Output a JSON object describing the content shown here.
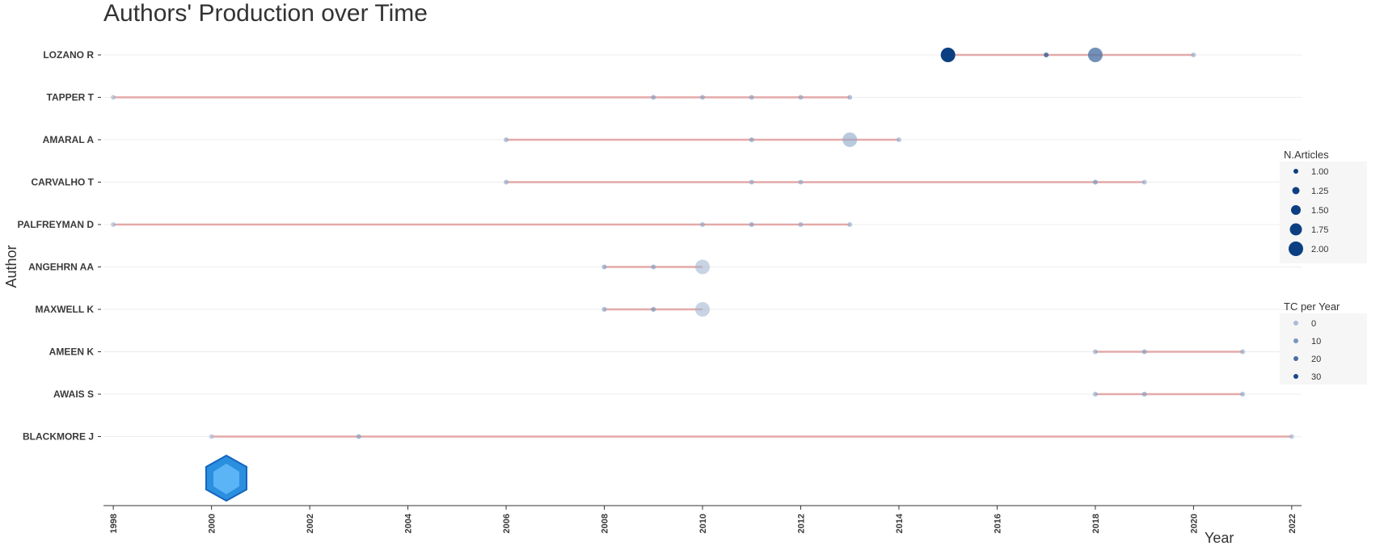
{
  "chart_data": {
    "type": "scatter",
    "title": "Authors' Production over Time",
    "xlabel": "Year",
    "ylabel": "Author",
    "xlim": [
      1997.8,
      2022.2
    ],
    "x_ticks": [
      "1998",
      "2000",
      "2002",
      "2004",
      "2006",
      "2008",
      "2010",
      "2012",
      "2014",
      "2016",
      "2018",
      "2020",
      "2022"
    ],
    "grid": true,
    "legend_position": "right",
    "line_color": "#e4a9a9",
    "point_color_low": "#a9bdd6",
    "point_color_high": "#0c3f82",
    "authors": [
      {
        "name": "LOZANO R",
        "range": [
          2015,
          2020
        ],
        "points": [
          {
            "year": 2015,
            "articles": 2,
            "tc": 32
          },
          {
            "year": 2017,
            "articles": 1,
            "tc": 22
          },
          {
            "year": 2018,
            "articles": 2,
            "tc": 18
          },
          {
            "year": 2020,
            "articles": 1,
            "tc": 5
          }
        ]
      },
      {
        "name": "TAPPER T",
        "range": [
          1998,
          2013
        ],
        "points": [
          {
            "year": 1998,
            "articles": 1,
            "tc": 3
          },
          {
            "year": 2009,
            "articles": 1,
            "tc": 8
          },
          {
            "year": 2010,
            "articles": 1,
            "tc": 7
          },
          {
            "year": 2011,
            "articles": 1,
            "tc": 7
          },
          {
            "year": 2012,
            "articles": 1,
            "tc": 7
          },
          {
            "year": 2013,
            "articles": 1,
            "tc": 6
          }
        ]
      },
      {
        "name": "AMARAL A",
        "range": [
          2006,
          2014
        ],
        "points": [
          {
            "year": 2006,
            "articles": 1,
            "tc": 6
          },
          {
            "year": 2011,
            "articles": 1,
            "tc": 8
          },
          {
            "year": 2013,
            "articles": 2,
            "tc": 5
          },
          {
            "year": 2014,
            "articles": 1,
            "tc": 5
          }
        ]
      },
      {
        "name": "CARVALHO T",
        "range": [
          2006,
          2019
        ],
        "points": [
          {
            "year": 2006,
            "articles": 1,
            "tc": 6
          },
          {
            "year": 2011,
            "articles": 1,
            "tc": 6
          },
          {
            "year": 2012,
            "articles": 1,
            "tc": 6
          },
          {
            "year": 2018,
            "articles": 1,
            "tc": 10
          },
          {
            "year": 2019,
            "articles": 1,
            "tc": 5
          }
        ]
      },
      {
        "name": "PALFREYMAN D",
        "range": [
          1998,
          2013
        ],
        "points": [
          {
            "year": 1998,
            "articles": 1,
            "tc": 3
          },
          {
            "year": 2010,
            "articles": 1,
            "tc": 6
          },
          {
            "year": 2011,
            "articles": 1,
            "tc": 8
          },
          {
            "year": 2012,
            "articles": 1,
            "tc": 6
          },
          {
            "year": 2013,
            "articles": 1,
            "tc": 5
          }
        ]
      },
      {
        "name": "ANGEHRN AA",
        "range": [
          2008,
          2010
        ],
        "points": [
          {
            "year": 2008,
            "articles": 1,
            "tc": 8
          },
          {
            "year": 2009,
            "articles": 1,
            "tc": 8
          },
          {
            "year": 2010,
            "articles": 2,
            "tc": 2
          }
        ]
      },
      {
        "name": "MAXWELL K",
        "range": [
          2008,
          2010
        ],
        "points": [
          {
            "year": 2008,
            "articles": 1,
            "tc": 8
          },
          {
            "year": 2009,
            "articles": 1,
            "tc": 10
          },
          {
            "year": 2010,
            "articles": 2,
            "tc": 2
          }
        ]
      },
      {
        "name": "AMEEN K",
        "range": [
          2018,
          2021
        ],
        "points": [
          {
            "year": 2018,
            "articles": 1,
            "tc": 6
          },
          {
            "year": 2019,
            "articles": 1,
            "tc": 8
          },
          {
            "year": 2021,
            "articles": 1,
            "tc": 6
          }
        ]
      },
      {
        "name": "AWAIS S",
        "range": [
          2018,
          2021
        ],
        "points": [
          {
            "year": 2018,
            "articles": 1,
            "tc": 6
          },
          {
            "year": 2019,
            "articles": 1,
            "tc": 8
          },
          {
            "year": 2021,
            "articles": 1,
            "tc": 6
          }
        ]
      },
      {
        "name": "BLACKMORE J",
        "range": [
          2000,
          2022
        ],
        "points": [
          {
            "year": 2000,
            "articles": 1,
            "tc": 2
          },
          {
            "year": 2003,
            "articles": 1,
            "tc": 8
          },
          {
            "year": 2022,
            "articles": 1,
            "tc": 3
          }
        ]
      }
    ],
    "legend": {
      "size_title": "N.Articles",
      "size_labels": [
        "1.00",
        "1.25",
        "1.50",
        "1.75",
        "2.00"
      ],
      "size_values": [
        1.0,
        1.25,
        1.5,
        1.75,
        2.0
      ],
      "color_title": "TC per Year",
      "color_labels": [
        "0",
        "10",
        "20",
        "30"
      ],
      "color_values": [
        0,
        10,
        20,
        30
      ]
    }
  }
}
